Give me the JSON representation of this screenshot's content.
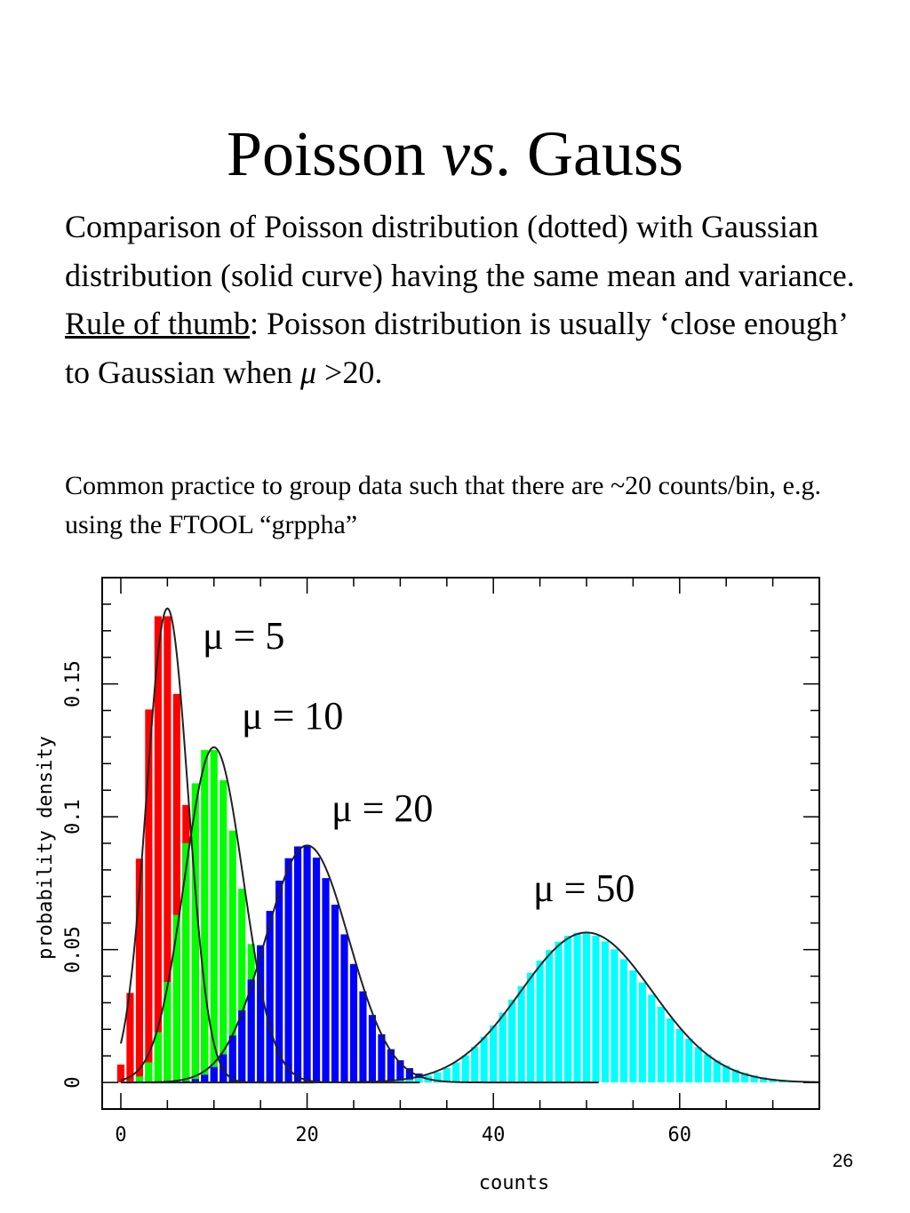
{
  "slide": {
    "title_prefix": "Poisson ",
    "title_italic": "vs",
    "title_suffix": ". Gauss",
    "paragraph": "Comparison of Poisson distribution (dotted) with Gaussian distribution (solid curve) having the same mean and variance.",
    "rule_label": "Rule of thumb",
    "rule_text": ": Poisson distribution is usually ‘close enough’ to Gaussian when ",
    "rule_mu": "μ",
    "rule_end": " >20.",
    "note": "Common practice to group data such that there are ~20 counts/bin, e.g. using the FTOOL “grppha”",
    "page_number": "26"
  },
  "chart_data": {
    "type": "bar",
    "xlabel": "counts",
    "ylabel": "probability density",
    "xlim": [
      -2,
      75
    ],
    "ylim": [
      -0.01,
      0.19
    ],
    "x_ticks": [
      0,
      20,
      40,
      60
    ],
    "y_ticks": [
      0,
      0.05,
      0.1,
      0.15
    ],
    "x_tick_labels": [
      "0",
      "20",
      "40",
      "60"
    ],
    "y_tick_labels": [
      "0",
      "0.05",
      "0.1",
      "0.15"
    ],
    "grid": false,
    "overlay": "Gaussian curve (solid) with same mean and variance for each series",
    "series": [
      {
        "mean": 5,
        "label": "μ = 5",
        "color": "#ff0000"
      },
      {
        "mean": 10,
        "label": "μ = 10",
        "color": "#00ff00"
      },
      {
        "mean": 20,
        "label": "μ = 20",
        "color": "#0000ff"
      },
      {
        "mean": 50,
        "label": "μ = 50",
        "color": "#00ffff"
      }
    ]
  }
}
